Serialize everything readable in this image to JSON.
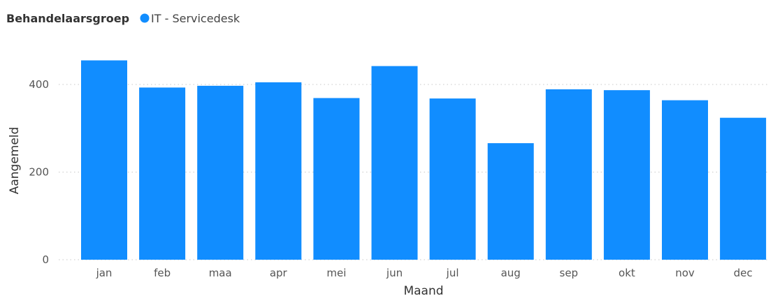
{
  "chart_data": {
    "type": "bar",
    "legend": {
      "title": "Behandelaarsgroep",
      "placement": "top-left"
    },
    "categories": [
      "jan",
      "feb",
      "maa",
      "apr",
      "mei",
      "jun",
      "jul",
      "aug",
      "sep",
      "okt",
      "nov",
      "dec"
    ],
    "series": [
      {
        "name": "IT - Servicedesk",
        "color": "#118DFF",
        "values": [
          455,
          393,
          397,
          405,
          369,
          442,
          368,
          266,
          389,
          387,
          364,
          324
        ]
      }
    ],
    "xlabel": "Maand",
    "ylabel": "Aangemeld",
    "ylim": [
      0,
      480
    ],
    "yticks": [
      0,
      200,
      400
    ],
    "grid": true
  }
}
